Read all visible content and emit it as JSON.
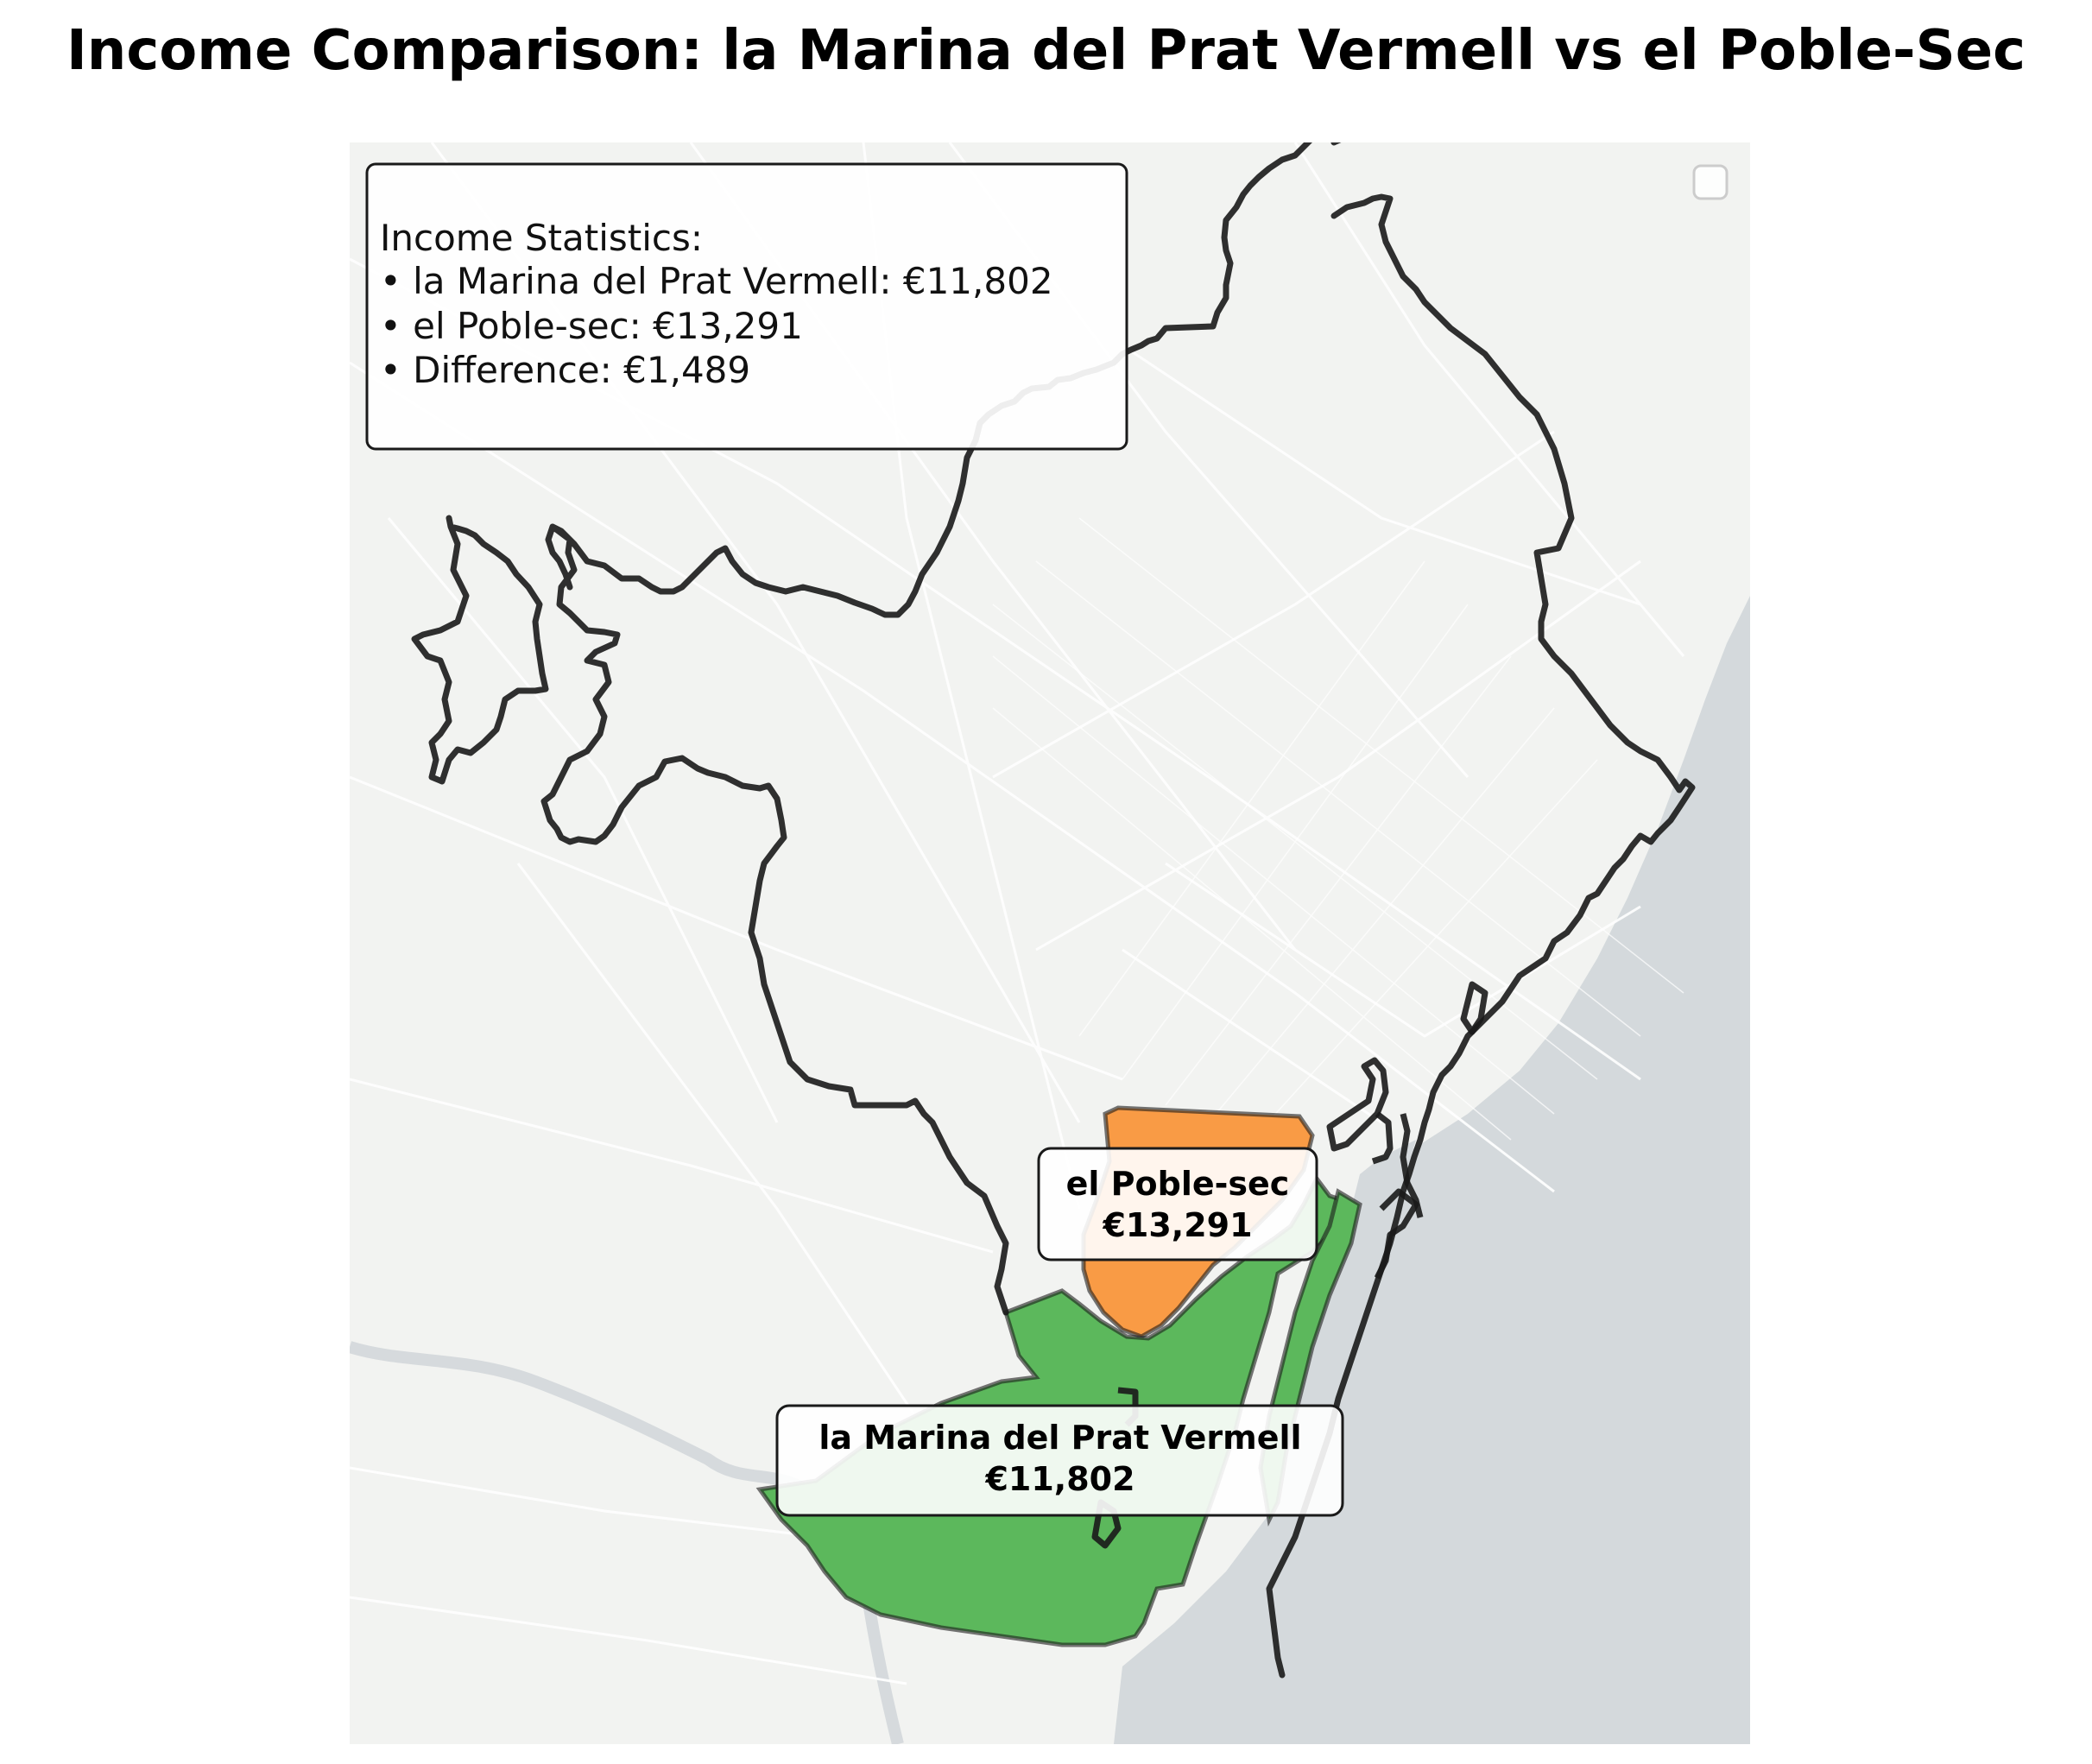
{
  "title": "Income Comparison: la Marina del Prat Vermell vs el Poble-Sec",
  "colors": {
    "land": "#f2f3f1",
    "sea": "#d4d9dc",
    "streets": "#ffffff",
    "boundary": "#1a1a1a",
    "el_poble_sec": "#f99b45",
    "la_marina": "#5cb85c"
  },
  "stats_box": {
    "heading": "Income Statistics:",
    "line1": "• la Marina del Prat Vermell: €11,802",
    "line2": "• el Poble-sec: €13,291",
    "line3": "• Difference: €1,489"
  },
  "neighborhoods": [
    {
      "name": "la Marina del Prat Vermell",
      "income": "€11,802",
      "income_value": 11802
    },
    {
      "name": "el Poble-sec",
      "income": "€13,291",
      "income_value": 13291
    }
  ],
  "difference_value": 1489
}
